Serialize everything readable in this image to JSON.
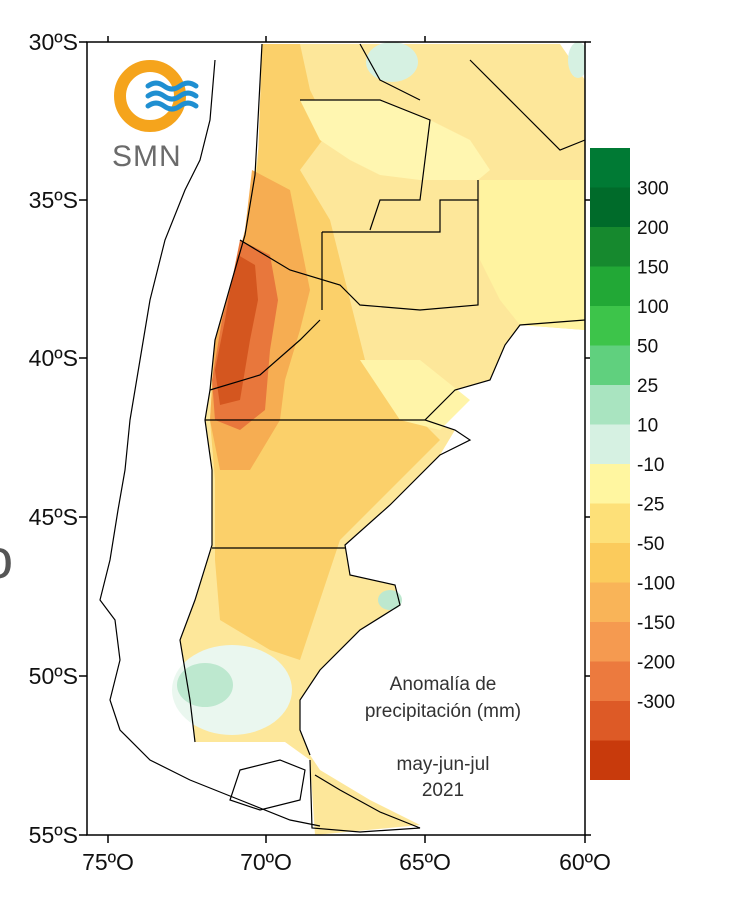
{
  "map": {
    "lat_ticks": [
      "30ºS",
      "35ºS",
      "40ºS",
      "45ºS",
      "50ºS",
      "55ºS"
    ],
    "lon_ticks": [
      "75ºO",
      "70ºO",
      "65ºO",
      "60ºO"
    ],
    "annotation": {
      "line1": "Anomalía de",
      "line2": "precipitación (mm)",
      "period": "may-jun-jul",
      "year": "2021"
    },
    "logo": {
      "text": "SMN"
    },
    "edge_glyph": "o"
  },
  "legend": {
    "positive": [
      {
        "label": "300",
        "color": "#006b2a"
      },
      {
        "label": "200",
        "color": "#16892e"
      },
      {
        "label": "150",
        "color": "#22a836"
      },
      {
        "label": "100",
        "color": "#3dc44a"
      },
      {
        "label": "50",
        "color": "#60d07e"
      },
      {
        "label": "25",
        "color": "#a9e4c0"
      },
      {
        "label": "10",
        "color": "#d6f1e2"
      }
    ],
    "positive_top_color": "#007a34",
    "negative": [
      {
        "label": "-10",
        "color": "#fff6a0"
      },
      {
        "label": "-25",
        "color": "#fde078"
      },
      {
        "label": "-50",
        "color": "#fbcb5c"
      },
      {
        "label": "-100",
        "color": "#f9b458"
      },
      {
        "label": "-150",
        "color": "#f59a50"
      },
      {
        "label": "-200",
        "color": "#ec7a3e"
      },
      {
        "label": "-300",
        "color": "#dd5a26"
      }
    ],
    "negative_bottom_color": "#c83a0c"
  }
}
